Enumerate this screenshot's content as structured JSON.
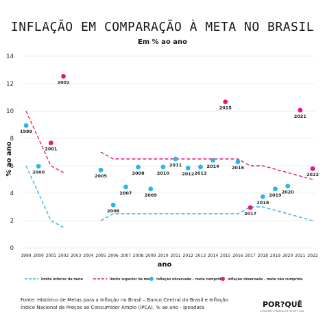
{
  "chart_data": {
    "type": "scatter",
    "title": "INFLAÇÃO EM COMPARAÇÃO À META NO BRASIL",
    "subtitle": "Em  % ao ano",
    "xlabel": "ano",
    "ylabel": "% ao ano",
    "ylim": [
      0,
      14
    ],
    "yticks": [
      0,
      2,
      4,
      6,
      8,
      10,
      12,
      14
    ],
    "categories": [
      "1999",
      "2000",
      "2001",
      "2002",
      "2003",
      "2004",
      "2005",
      "2006",
      "2007",
      "2008",
      "2009",
      "2010",
      "2011",
      "2012",
      "2013",
      "2014",
      "2015",
      "2016",
      "2017",
      "2018",
      "2019",
      "2020",
      "2021",
      "2022"
    ],
    "grid": "horizontal",
    "series": [
      {
        "name": "limite inferior da meta",
        "kind": "dashed-line",
        "color": "#29b6e8",
        "segments": [
          [
            [
              "1999",
              6
            ],
            [
              "2000",
              4
            ],
            [
              "2001",
              2
            ],
            [
              "2002",
              1.5
            ]
          ],
          [
            [
              "2005",
              2
            ],
            [
              "2006",
              2.5
            ],
            [
              "2016",
              2.5
            ],
            [
              "2017",
              3
            ],
            [
              "2018",
              3
            ],
            [
              "2022",
              2
            ]
          ]
        ]
      },
      {
        "name": "limite superior da meta",
        "kind": "dashed-line",
        "color": "#e8147f",
        "segments": [
          [
            [
              "1999",
              10
            ],
            [
              "2000",
              8
            ],
            [
              "2001",
              6
            ],
            [
              "2002",
              5.5
            ]
          ],
          [
            [
              "2005",
              7
            ],
            [
              "2006",
              6.5
            ],
            [
              "2016",
              6.5
            ],
            [
              "2017",
              6
            ],
            [
              "2018",
              6
            ],
            [
              "2022",
              5
            ]
          ]
        ]
      },
      {
        "name": "inflação observada - meta cumprida",
        "kind": "points",
        "color": "#29b6e8",
        "points": [
          {
            "x": "1999",
            "y": 8.94,
            "label": "1999"
          },
          {
            "x": "2000",
            "y": 5.97,
            "label": "2000"
          },
          {
            "x": "2005",
            "y": 5.69,
            "label": "2005"
          },
          {
            "x": "2006",
            "y": 3.14,
            "label": "2006"
          },
          {
            "x": "2007",
            "y": 4.46,
            "label": "2007"
          },
          {
            "x": "2008",
            "y": 5.9,
            "label": "2008"
          },
          {
            "x": "2009",
            "y": 4.31,
            "label": "2009"
          },
          {
            "x": "2010",
            "y": 5.91,
            "label": "2010"
          },
          {
            "x": "2011",
            "y": 6.5,
            "label": "2011"
          },
          {
            "x": "2012",
            "y": 5.84,
            "label": "2012"
          },
          {
            "x": "2013",
            "y": 5.91,
            "label": "2013"
          },
          {
            "x": "2014",
            "y": 6.41,
            "label": "2014"
          },
          {
            "x": "2016",
            "y": 6.29,
            "label": "2016"
          },
          {
            "x": "2018",
            "y": 3.75,
            "label": "2018"
          },
          {
            "x": "2019",
            "y": 4.31,
            "label": "2019"
          },
          {
            "x": "2020",
            "y": 4.52,
            "label": "2020"
          }
        ]
      },
      {
        "name": "inflação observada - meta não cumprida",
        "kind": "points",
        "color": "#e8147f",
        "points": [
          {
            "x": "2001",
            "y": 7.67,
            "label": "2001"
          },
          {
            "x": "2002",
            "y": 12.53,
            "label": "2002"
          },
          {
            "x": "2015",
            "y": 10.67,
            "label": "2015"
          },
          {
            "x": "2017",
            "y": 2.95,
            "label": "2017"
          },
          {
            "x": "2021",
            "y": 10.06,
            "label": "2021"
          },
          {
            "x": "2022",
            "y": 5.79,
            "label": "2022"
          }
        ]
      }
    ],
    "legend": [
      {
        "label": "limite inferior da meta",
        "swatch": "dashed",
        "color": "#29b6e8"
      },
      {
        "label": "limite superior da meta",
        "swatch": "dashed",
        "color": "#e8147f"
      },
      {
        "label": "inflação observada – meta cumprida",
        "swatch": "dot",
        "color": "#29b6e8"
      },
      {
        "label": "inflação observada – meta não cumprida",
        "swatch": "dot",
        "color": "#e8147f"
      }
    ],
    "legend_position": "bottom"
  },
  "source": {
    "line1": "Fonte: Histórico de Metas para a Inflação no Brasil – Banco Central do Brasil e Inflação",
    "line2": "Índice Nacional de Preços ao Consumidor Amplo (IPCA), % ao ano - Ipeadata"
  },
  "brand": {
    "name": "POR?QUÊ",
    "tagline": "ECONOMÊS | FINANÇAS DE UM JEITO FÁCIL"
  }
}
